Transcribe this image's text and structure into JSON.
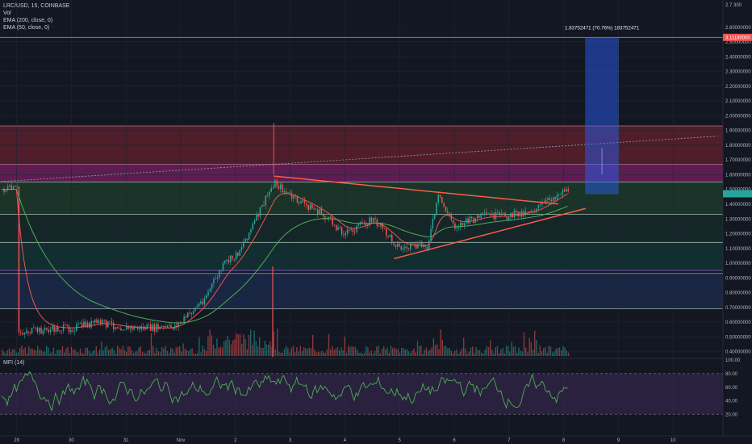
{
  "header": {
    "symbol_line": "LRC/USD, 15, COINBASE",
    "indicators": [
      "Vol",
      "EMA (200, close, 0)",
      "EMA (50, close, 0)"
    ]
  },
  "mfi_label": "MFI (14)",
  "target_label": "1.83752471 (70.76%) 183752471",
  "current_price_label": "3.11180000",
  "top_axis_label": "2.7 300",
  "colors": {
    "background": "#131722",
    "candle_up": "#26a69a",
    "candle_down": "#ef5350",
    "ema200": "#4caf50",
    "ema50": "#ef5350",
    "trendline": "#ff5a4a",
    "target_box": "#2962ff",
    "mfi_line": "#4caf50",
    "mfi_band": "#3c2a55"
  },
  "chart_data": {
    "type": "candlestick",
    "title": "LRC/USD, 15, COINBASE",
    "x_ticks": [
      "29",
      "30",
      "31",
      "Nov",
      "2",
      "3",
      "4",
      "5",
      "6",
      "7",
      "8",
      "9",
      "10"
    ],
    "y_ticks": [
      0.4,
      0.5,
      0.6,
      0.7,
      0.8,
      0.9,
      1.0,
      1.1,
      1.2,
      1.3,
      1.4,
      1.5,
      1.6,
      1.7,
      1.8,
      1.9,
      2.0,
      2.1,
      2.2,
      2.3,
      2.4,
      2.5,
      2.6
    ],
    "ylim": [
      0.38,
      2.72
    ],
    "price_path": [
      {
        "day": "29",
        "price": 0.53
      },
      {
        "day": "30",
        "price": 0.56
      },
      {
        "day": "30.5",
        "price": 0.6
      },
      {
        "day": "31",
        "price": 0.56
      },
      {
        "day": "31.8",
        "price": 0.56
      },
      {
        "day": "Nov",
        "price": 0.6
      },
      {
        "day": "1.4",
        "price": 0.75
      },
      {
        "day": "1.8",
        "price": 1.0
      },
      {
        "day": "2",
        "price": 1.05
      },
      {
        "day": "2.3",
        "price": 1.25
      },
      {
        "day": "2.5",
        "price": 1.4
      },
      {
        "day": "2.7",
        "price": 1.55
      },
      {
        "day": "3",
        "price": 1.45
      },
      {
        "day": "3.5",
        "price": 1.35
      },
      {
        "day": "4",
        "price": 1.2
      },
      {
        "day": "4.5",
        "price": 1.3
      },
      {
        "day": "5",
        "price": 1.1
      },
      {
        "day": "5.5",
        "price": 1.12
      },
      {
        "day": "5.7",
        "price": 1.45
      },
      {
        "day": "6",
        "price": 1.25
      },
      {
        "day": "6.5",
        "price": 1.32
      },
      {
        "day": "7",
        "price": 1.32
      },
      {
        "day": "7.5",
        "price": 1.37
      },
      {
        "day": "8",
        "price": 1.5
      }
    ],
    "horizontal_levels": [
      2.53,
      1.93,
      1.67,
      1.55,
      1.33,
      1.14,
      0.95,
      0.93,
      0.69
    ],
    "zones": [
      {
        "from": 1.67,
        "to": 1.93,
        "color": "#5c1f2b"
      },
      {
        "from": 1.55,
        "to": 1.67,
        "color": "#6b1f5a"
      },
      {
        "from": 1.33,
        "to": 1.55,
        "color": "#1d3a2a"
      },
      {
        "from": 1.14,
        "to": 1.33,
        "color": "#16292a"
      },
      {
        "from": 0.95,
        "to": 1.14,
        "color": "#123333"
      },
      {
        "from": 0.69,
        "to": 0.93,
        "color": "#1b2a4a"
      }
    ],
    "triangle": {
      "upper": [
        {
          "day": "2.7",
          "price": 1.59
        },
        {
          "day": "7.9",
          "price": 1.4
        }
      ],
      "lower": [
        {
          "day": "4.9",
          "price": 1.03
        },
        {
          "day": "8.4",
          "price": 1.37
        }
      ]
    },
    "dotted_trend": [
      {
        "day": "28.6",
        "price": 1.55
      },
      {
        "day": "10.8",
        "price": 1.86
      }
    ],
    "target": {
      "from": 1.47,
      "to": 2.53,
      "x_start": "8.4",
      "x_end": "9"
    },
    "mfi": {
      "ylim": [
        0,
        100
      ],
      "overbought": 80,
      "oversold": 20,
      "ticks": [
        20,
        40,
        60,
        80,
        100
      ]
    }
  }
}
